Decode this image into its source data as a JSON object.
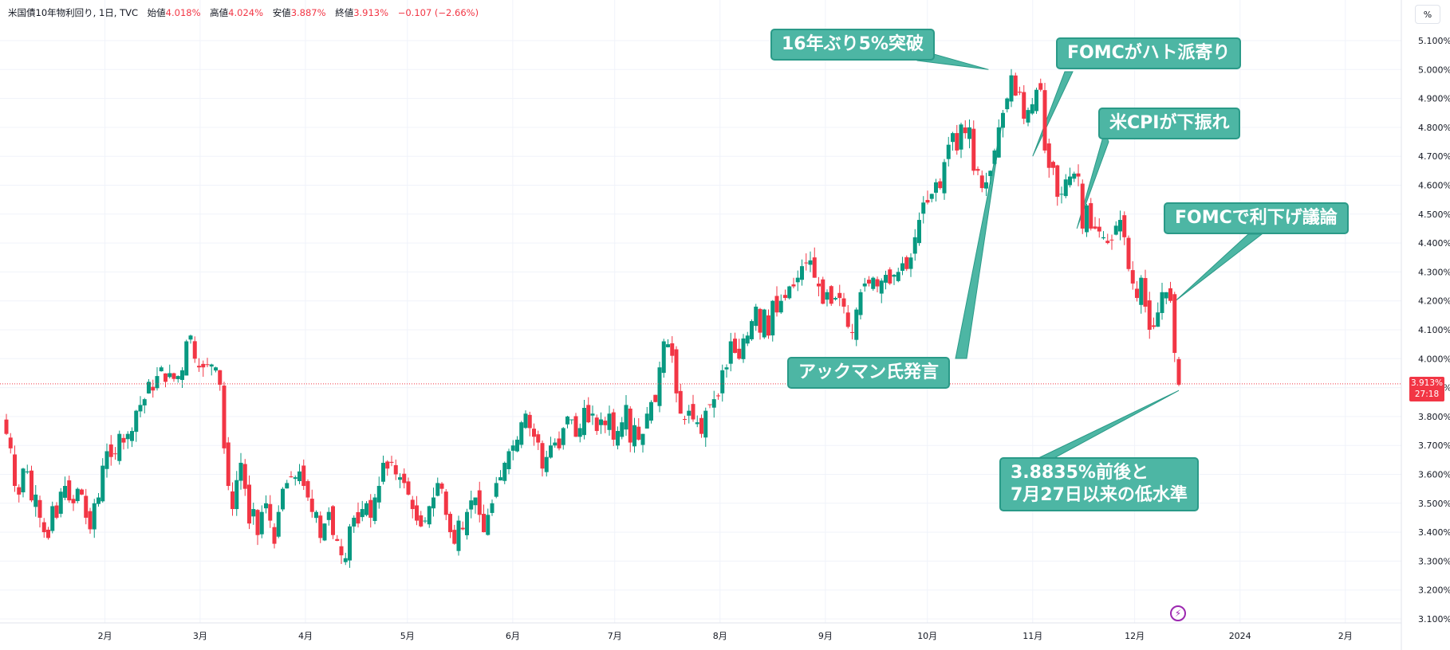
{
  "header": {
    "symbol": "米国債10年物利回り, 1日, TVC",
    "open_label": "始値",
    "open": "4.018%",
    "high_label": "高値",
    "high": "4.024%",
    "low_label": "安値",
    "low": "3.887%",
    "close_label": "終値",
    "close": "3.913%",
    "change": "−0.107 (−2.66%)"
  },
  "unit_button": "%",
  "price_tag": {
    "price": "3.913%",
    "countdown": "27:18"
  },
  "colors": {
    "up": "#089981",
    "down": "#f23645",
    "annotation_bg": "#4db6a4",
    "annotation_border": "#2a9a88"
  },
  "icons": {
    "bolt": "lightning-icon"
  },
  "annotations": [
    {
      "id": "a1",
      "text": "16年ぶり5%突破",
      "date": "2023-10-19",
      "value": 5.0
    },
    {
      "id": "a2",
      "text": "アックマン氏発言",
      "date": "2023-10-23",
      "value": 4.82
    },
    {
      "id": "a3",
      "text": "FOMCがハト派寄り",
      "date": "2023-11-01",
      "value": 4.7
    },
    {
      "id": "a4",
      "text": "米CPIが下振れ",
      "date": "2023-11-14",
      "value": 4.45
    },
    {
      "id": "a5",
      "text": "FOMCで利下げ議論",
      "date": "2023-12-13",
      "value": 4.2
    },
    {
      "id": "a6",
      "text": "3.8835%前後と\n7月27日以来の低水準",
      "date": "2023-12-14",
      "value": 3.89
    }
  ],
  "chart_data": {
    "type": "candlestick",
    "title": "米国債10年物利回り, 1日, TVC",
    "x": {
      "start": "2023-01-03",
      "end": "2023-12-14",
      "tick_labels": [
        "2月",
        "3月",
        "4月",
        "5月",
        "6月",
        "7月",
        "8月",
        "9月",
        "10月",
        "11月",
        "12月",
        "2024",
        "2月"
      ]
    },
    "y": {
      "ylim": [
        3.07,
        5.15
      ],
      "tick_labels": [
        "3.100%",
        "3.200%",
        "3.300%",
        "3.400%",
        "3.500%",
        "3.600%",
        "3.700%",
        "3.800%",
        "3.900%",
        "4.000%",
        "4.100%",
        "4.200%",
        "4.300%",
        "4.400%",
        "4.500%",
        "4.600%",
        "4.700%",
        "4.800%",
        "4.900%",
        "5.000%",
        "5.100%"
      ]
    },
    "last_close": 3.913,
    "closes": [
      3.74,
      3.69,
      3.56,
      3.53,
      3.62,
      3.61,
      3.51,
      3.53,
      3.45,
      3.4,
      3.38,
      3.49,
      3.45,
      3.54,
      3.56,
      3.51,
      3.5,
      3.55,
      3.53,
      3.45,
      3.41,
      3.5,
      3.52,
      3.63,
      3.68,
      3.66,
      3.67,
      3.74,
      3.71,
      3.74,
      3.75,
      3.82,
      3.84,
      3.86,
      3.92,
      3.89,
      3.94,
      3.97,
      3.92,
      3.95,
      3.93,
      3.94,
      3.96,
      4.06,
      4.08,
      4.0,
      3.97,
      3.97,
      3.98,
      3.98,
      3.97,
      3.91,
      3.69,
      3.56,
      3.48,
      3.58,
      3.64,
      3.55,
      3.43,
      3.48,
      3.39,
      3.47,
      3.5,
      3.44,
      3.36,
      3.47,
      3.55,
      3.57,
      3.59,
      3.59,
      3.61,
      3.56,
      3.52,
      3.47,
      3.47,
      3.38,
      3.43,
      3.47,
      3.39,
      3.37,
      3.32,
      3.31,
      3.42,
      3.45,
      3.43,
      3.48,
      3.5,
      3.45,
      3.52,
      3.56,
      3.64,
      3.62,
      3.64,
      3.6,
      3.59,
      3.57,
      3.53,
      3.48,
      3.44,
      3.42,
      3.44,
      3.49,
      3.52,
      3.57,
      3.55,
      3.46,
      3.4,
      3.36,
      3.44,
      3.41,
      3.47,
      3.51,
      3.52,
      3.46,
      3.4,
      3.46,
      3.5,
      3.57,
      3.59,
      3.64,
      3.68,
      3.7,
      3.72,
      3.78,
      3.81,
      3.76,
      3.73,
      3.71,
      3.62,
      3.66,
      3.7,
      3.71,
      3.69,
      3.76,
      3.8,
      3.79,
      3.73,
      3.76,
      3.83,
      3.78,
      3.81,
      3.75,
      3.79,
      3.77,
      3.81,
      3.72,
      3.75,
      3.78,
      3.84,
      3.71,
      3.77,
      3.72,
      3.74,
      3.81,
      3.85,
      3.85,
      3.97,
      4.06,
      4.05,
      4.01,
      3.88,
      3.81,
      3.79,
      3.82,
      3.79,
      3.78,
      3.74,
      3.82,
      3.84,
      3.86,
      3.87,
      3.96,
      3.97,
      4.06,
      4.02,
      4.0,
      4.07,
      4.08,
      4.13,
      4.18,
      4.09,
      4.17,
      4.08,
      4.2,
      4.16,
      4.2,
      4.21,
      4.25,
      4.25,
      4.28,
      4.32,
      4.33,
      4.34,
      4.28,
      4.25,
      4.19,
      4.23,
      4.19,
      4.21,
      4.21,
      4.18,
      4.11,
      4.09,
      4.17,
      4.23,
      4.26,
      4.26,
      4.28,
      4.25,
      4.27,
      4.29,
      4.26,
      4.29,
      4.3,
      4.33,
      4.31,
      4.35,
      4.42,
      4.48,
      4.54,
      4.54,
      4.57,
      4.61,
      4.59,
      4.68,
      4.74,
      4.78,
      4.72,
      4.81,
      4.78,
      4.8,
      4.65,
      4.65,
      4.59,
      4.61,
      4.65,
      4.72,
      4.8,
      4.85,
      4.9,
      4.98,
      4.91,
      4.92,
      4.83,
      4.86,
      4.88,
      4.93,
      4.93,
      4.72,
      4.66,
      4.66,
      4.56,
      4.57,
      4.62,
      4.63,
      4.64,
      4.63,
      4.45,
      4.53,
      4.45,
      4.45,
      4.44,
      4.42,
      4.4,
      4.41,
      4.46,
      4.48,
      4.42,
      4.31,
      4.26,
      4.21,
      4.28,
      4.18,
      4.1,
      4.11,
      4.16,
      4.23,
      4.23,
      4.2,
      4.02,
      3.91
    ]
  }
}
